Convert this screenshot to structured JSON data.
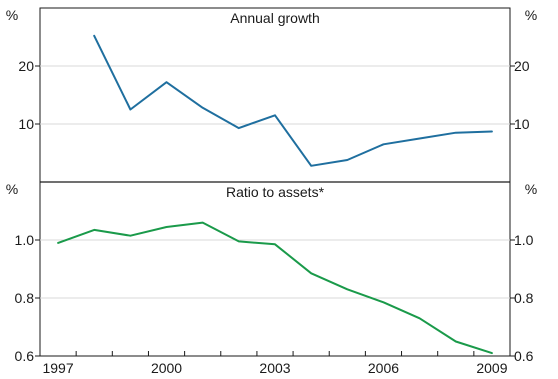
{
  "chart_data": [
    {
      "type": "line",
      "title": "Annual growth",
      "unit_label": "%",
      "color": "#1f6f9f",
      "x": [
        1998,
        1999,
        2000,
        2001,
        2002,
        2003,
        2004,
        2005,
        2006,
        2007,
        2008,
        2009
      ],
      "values": [
        25.2,
        12.5,
        17.2,
        12.8,
        9.3,
        11.5,
        2.8,
        3.8,
        6.5,
        7.5,
        8.5,
        8.7
      ],
      "ylim": [
        0,
        30
      ],
      "yticks": [
        10,
        20
      ],
      "ytick_labels": [
        "10",
        "20"
      ]
    },
    {
      "type": "line",
      "title": "Ratio to assets*",
      "unit_label": "%",
      "color": "#1a9a4a",
      "x": [
        1997,
        1998,
        1999,
        2000,
        2001,
        2002,
        2003,
        2004,
        2005,
        2006,
        2007,
        2008,
        2009
      ],
      "values": [
        0.99,
        1.035,
        1.015,
        1.045,
        1.06,
        0.995,
        0.985,
        0.885,
        0.83,
        0.785,
        0.73,
        0.65,
        0.61
      ],
      "ylim": [
        0.6,
        1.2
      ],
      "yticks": [
        0.6,
        0.8,
        1.0
      ],
      "ytick_labels": [
        "0.6",
        "0.8",
        "1.0"
      ]
    }
  ],
  "x_axis": {
    "xlim": [
      1996.5,
      2009.5
    ],
    "ticks": [
      1997,
      2000,
      2003,
      2006,
      2009
    ],
    "tick_labels": [
      "1997",
      "2000",
      "2003",
      "2006",
      "2009"
    ]
  }
}
